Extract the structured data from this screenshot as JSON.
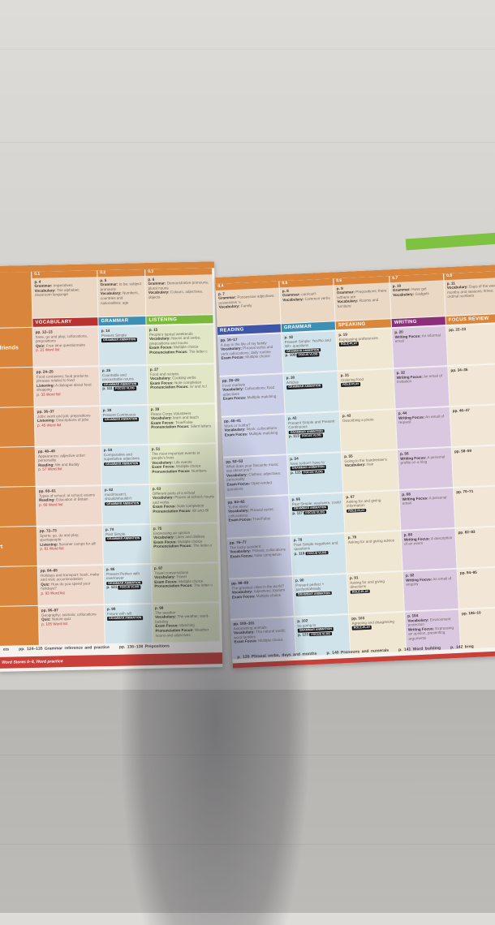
{
  "colors": {
    "orange": "#d9853b",
    "vocabulary": "#b8322f",
    "grammar": "#3d8fb5",
    "listening": "#79b83a",
    "reading": "#3f56a8",
    "speaking": "#d9883b",
    "writing": "#8c2f7a",
    "focus_review": "#d9853b"
  },
  "left_page": {
    "side_labels": [
      "d friends",
      "",
      "",
      "",
      "",
      "rt",
      "",
      ""
    ],
    "intro": [
      {
        "num": "0.1",
        "page": "p. 4",
        "items": [
          {
            "k": "Grammar:",
            "v": "Imperatives"
          },
          {
            "k": "Vocabulary:",
            "v": "The alphabet; classroom language"
          }
        ]
      },
      {
        "num": "0.2",
        "page": "p. 5",
        "items": [
          {
            "k": "Grammar:",
            "v": "to be; subject pronouns"
          },
          {
            "k": "Vocabulary:",
            "v": "Numbers, countries and nationalities; age"
          }
        ]
      },
      {
        "num": "0.3",
        "page": "p. 6",
        "items": [
          {
            "k": "Grammar:",
            "v": "Demonstrative pronouns, plural nouns"
          },
          {
            "k": "Vocabulary:",
            "v": "Colours, adjectives, objects"
          }
        ]
      }
    ],
    "headers": [
      {
        "label": "VOCABULARY",
        "color": "#b8322f",
        "bg": "#efd9cd"
      },
      {
        "label": "GRAMMAR",
        "color": "#3d8fb5",
        "bg": "#d3e3ea"
      },
      {
        "label": "LISTENING",
        "color": "#79b83a",
        "bg": "#e0e6c6"
      }
    ],
    "rows": [
      [
        {
          "page": "pp. 12–13",
          "text": "have, go and play; collocations, prepositions",
          "items": [
            {
              "k": "Quiz:",
              "v": "Free time questionnaire"
            }
          ],
          "wl": "p. 21 Word list"
        },
        {
          "page": "p. 14",
          "text": "Present Simple",
          "badges": [
            "GRAMMAR ANIMATION"
          ]
        },
        {
          "page": "p. 15",
          "text": "People's typical weekends",
          "items": [
            {
              "k": "Vocabulary:",
              "v": "Nouns and verbs; prepositions and nouns"
            },
            {
              "k": "Exam Focus:",
              "v": "Multiple choice"
            },
            {
              "k": "Pronunciation Focus:",
              "v": "The letter c"
            }
          ]
        }
      ],
      [
        {
          "page": "pp. 24–25",
          "text": "Food containers; food products; phrases related to food",
          "items": [
            {
              "k": "Listening:",
              "v": "A dialogue about food shopping"
            }
          ],
          "wl": "p. 33 Word list"
        },
        {
          "page": "p. 26",
          "text": "Countable and uncountable nouns",
          "badges": [
            "GRAMMAR ANIMATION"
          ],
          "extra": "p. 111",
          "badges2": [
            "FOCUS VLOG"
          ]
        },
        {
          "page": "p. 27",
          "text": "Food and recipes",
          "items": [
            {
              "k": "Vocabulary:",
              "v": "Cooking verbs"
            },
            {
              "k": "Exam Focus:",
              "v": "Note completion"
            },
            {
              "k": "Pronunciation Focus:",
              "v": "/ʌ/ and /u:/"
            }
          ]
        }
      ],
      [
        {
          "page": "pp. 36–37",
          "text": "Jobs; work and job; prepositions",
          "items": [
            {
              "k": "Listening:",
              "v": "Descriptions of jobs"
            }
          ],
          "wl": "p. 45 Word list"
        },
        {
          "page": "p. 38",
          "text": "Present Continuous",
          "badges": [
            "GRAMMAR ANIMATION"
          ]
        },
        {
          "page": "p. 39",
          "text": "Peace Corps Volunteers",
          "items": [
            {
              "k": "Vocabulary:",
              "v": "learn and teach"
            },
            {
              "k": "Exam Focus:",
              "v": "True/False"
            },
            {
              "k": "Pronunciation Focus:",
              "v": "Silent letters"
            }
          ]
        }
      ],
      [
        {
          "page": "pp. 48–49",
          "text": "Appearance; adjective order; personality",
          "items": [
            {
              "k": "Reading:",
              "v": "Me and Buddy"
            }
          ],
          "wl": "p. 57 Word list"
        },
        {
          "page": "p. 50",
          "text": "Comparative and superlative adjectives",
          "badges": [
            "GRAMMAR ANIMATION"
          ]
        },
        {
          "page": "p. 51",
          "text": "The most important events in people's lives",
          "items": [
            {
              "k": "Vocabulary:",
              "v": "Life events"
            },
            {
              "k": "Exam Focus:",
              "v": "Multiple choice"
            },
            {
              "k": "Pronunciation Focus:",
              "v": "Numbers"
            }
          ]
        }
      ],
      [
        {
          "page": "pp. 60–61",
          "text": "Types of school; at school; exams",
          "items": [
            {
              "k": "Reading:",
              "v": "Education in Britain"
            }
          ],
          "wl": "p. 69 Word list"
        },
        {
          "page": "p. 62",
          "text": "must/mustn't, should/shouldn't",
          "badges": [
            "GRAMMAR ANIMATION"
          ]
        },
        {
          "page": "p. 63",
          "text": "Different parts of a school",
          "items": [
            {
              "k": "Vocabulary:",
              "v": "Places at school; nouns and verbs"
            },
            {
              "k": "Exam Focus:",
              "v": "Note completion"
            },
            {
              "k": "Pronunciation Focus:",
              "v": "/θ/ and /ð/"
            }
          ]
        }
      ],
      [
        {
          "page": "pp. 72–73",
          "text": "Sports; go, do and play; sportspeople",
          "items": [
            {
              "k": "Listening:",
              "v": "Summer camps for all!"
            }
          ],
          "wl": "p. 81 Word list"
        },
        {
          "page": "p. 74",
          "text": "Past Simple",
          "badges": [
            "GRAMMAR ANIMATION"
          ]
        },
        {
          "page": "p. 75",
          "text": "Expressing an opinion",
          "items": [
            {
              "k": "Vocabulary:",
              "v": "Likes and dislikes"
            },
            {
              "k": "Exam Focus:",
              "v": "Multiple choice"
            },
            {
              "k": "Pronunciation Focus:",
              "v": "The letter a"
            }
          ]
        }
      ],
      [
        {
          "page": "pp. 84–85",
          "text": "Holidays and transport; book, make and visit; accommodation",
          "items": [
            {
              "k": "Quiz:",
              "v": "How do you spend your holidays?"
            }
          ],
          "wl": "p. 93 Word list"
        },
        {
          "page": "p. 86",
          "text": "Present Perfect with ever/never",
          "badges": [
            "GRAMMAR ANIMATION"
          ],
          "extra": "p. 121",
          "badges2": [
            "FOCUS VLOG"
          ]
        },
        {
          "page": "p. 87",
          "text": "Travel conversations",
          "items": [
            {
              "k": "Vocabulary:",
              "v": "Travel"
            },
            {
              "k": "Exam Focus:",
              "v": "Multiple choice"
            },
            {
              "k": "Pronunciation Focus:",
              "v": "The letter o"
            }
          ]
        }
      ],
      [
        {
          "page": "pp. 96–97",
          "text": "Geography; animals; collocations",
          "items": [
            {
              "k": "Quiz:",
              "v": "Nature quiz"
            }
          ],
          "wl": "p. 105 Word list"
        },
        {
          "page": "p. 98",
          "text": "Future with will",
          "badges": [
            "GRAMMAR ANIMATION"
          ]
        },
        {
          "page": "p. 99",
          "text": "The weather",
          "items": [
            {
              "k": "Vocabulary:",
              "v": "The weather; word-building"
            },
            {
              "k": "Exam Focus:",
              "v": "Matching"
            },
            {
              "k": "Pronunciation Focus:",
              "v": "Weather nouns and adjectives"
            }
          ]
        }
      ]
    ],
    "footer": [
      "ets",
      "pp. 124–135 Grammar reference and practice",
      "pp. 136–138 Prepositions"
    ],
    "red_band": "Word Stores 0–8, Word practice"
  },
  "right_page": {
    "intro": [
      {
        "num": "0.4",
        "page": "p. 7",
        "items": [
          {
            "k": "Grammar:",
            "v": "Possessive adjectives; possessive 's"
          },
          {
            "k": "Vocabulary:",
            "v": "Family"
          }
        ]
      },
      {
        "num": "0.5",
        "page": "p. 8",
        "items": [
          {
            "k": "Grammar:",
            "v": "can/can't"
          },
          {
            "k": "Vocabulary:",
            "v": "Common verbs"
          }
        ]
      },
      {
        "num": "0.6",
        "page": "p. 9",
        "items": [
          {
            "k": "Grammar:",
            "v": "Prepositions; there is/there are"
          },
          {
            "k": "Vocabulary:",
            "v": "Rooms and furniture"
          }
        ]
      },
      {
        "num": "0.7",
        "page": "p. 10",
        "items": [
          {
            "k": "Grammar:",
            "v": "Have got"
          },
          {
            "k": "Vocabulary:",
            "v": "Gadgets"
          }
        ]
      },
      {
        "num": "0.8",
        "page": "p. 11",
        "items": [
          {
            "k": "Vocabulary:",
            "v": "Days of the week, months and seasons; times; ordinal numbers"
          }
        ]
      }
    ],
    "headers": [
      {
        "label": "READING",
        "color": "#3f56a8",
        "bg": "#cbcfe7"
      },
      {
        "label": "GRAMMAR",
        "color": "#3d8fb5",
        "bg": "#d0e3ea"
      },
      {
        "label": "SPEAKING",
        "color": "#d9883b",
        "bg": "#f0e7d2"
      },
      {
        "label": "WRITING",
        "color": "#8c2f7a",
        "bg": "#dac8e1"
      },
      {
        "label": "FOCUS REVIEW",
        "color": "#d9853b",
        "bg": "#f2e6d6"
      }
    ],
    "rows": [
      [
        {
          "page": "pp. 16–17",
          "text": "A day in the life of my family",
          "items": [
            {
              "k": "Vocabulary:",
              "v": "Phrasal verbs and verb collocations; daily routine"
            },
            {
              "k": "Exam Focus:",
              "v": "Multiple choice"
            }
          ]
        },
        {
          "page": "p. 18",
          "text": "Present Simple: Yes/No and Wh- questions",
          "badges": [
            "GRAMMAR ANIMATION"
          ],
          "extra": "p. 109",
          "badges2": [
            "FOCUS VLOG"
          ]
        },
        {
          "page": "p. 19",
          "text": "Expressing preferences",
          "badges": [
            "ROLE-PLAY"
          ]
        },
        {
          "page": "p. 20",
          "items": [
            {
              "k": "Writing Focus:",
              "v": "An informal email"
            }
          ]
        },
        {
          "page": "pp. 22–23"
        }
      ],
      [
        {
          "page": "pp. 28–29",
          "text": "Food markets",
          "items": [
            {
              "k": "Vocabulary:",
              "v": "Collocations; food adjectives"
            },
            {
              "k": "Exam Focus:",
              "v": "Multiple matching"
            }
          ]
        },
        {
          "page": "p. 30",
          "text": "Articles",
          "badges": [
            "GRAMMAR ANIMATION"
          ]
        },
        {
          "page": "p. 31",
          "text": "Ordering food",
          "badges": [
            "ROLE-PLAY"
          ]
        },
        {
          "page": "p. 32",
          "items": [
            {
              "k": "Writing Focus:",
              "v": "An email of invitation"
            }
          ]
        },
        {
          "page": "pp. 34–35"
        }
      ],
      [
        {
          "page": "pp. 40–41",
          "text": "Work or hobby?",
          "items": [
            {
              "k": "Vocabulary:",
              "v": "Work; collocations"
            },
            {
              "k": "Exam Focus:",
              "v": "Multiple matching"
            }
          ]
        },
        {
          "page": "p. 42",
          "text": "Present Simple and Present Continuous",
          "badges": [
            "GRAMMAR ANIMATION"
          ],
          "extra": "p. 113",
          "badges2": [
            "FOCUS VLOG"
          ]
        },
        {
          "page": "p. 43",
          "text": "Describing a photo"
        },
        {
          "page": "p. 44",
          "items": [
            {
              "k": "Writing Focus:",
              "v": "An email of request"
            }
          ]
        },
        {
          "page": "pp. 46–47"
        }
      ],
      [
        {
          "page": "pp. 52–53",
          "text": "What does your favourite music say about you?",
          "items": [
            {
              "k": "Vocabulary:",
              "v": "Clothes; adjectives; personality"
            },
            {
              "k": "Exam Focus:",
              "v": "Open-ended questions"
            }
          ]
        },
        {
          "page": "p. 54",
          "text": "have to/don't have to",
          "badges": [
            "GRAMMAR ANIMATION"
          ],
          "extra": "p. 115",
          "badges2": [
            "FOCUS VLOG"
          ]
        },
        {
          "page": "p. 55",
          "text": "Going to the hairdresser's",
          "items": [
            {
              "k": "Vocabulary:",
              "v": "Hair"
            }
          ]
        },
        {
          "page": "p. 56",
          "items": [
            {
              "k": "Writing Focus:",
              "v": "A personal profile on a blog"
            }
          ]
        },
        {
          "page": "pp. 58–59"
        }
      ],
      [
        {
          "page": "pp. 64–65",
          "text": "To the stars!",
          "items": [
            {
              "k": "Vocabulary:",
              "v": "Phrasal verbs; collocations"
            },
            {
              "k": "Exam Focus:",
              "v": "True/False"
            }
          ]
        },
        {
          "page": "p. 66",
          "text": "Past Simple: was/were, could",
          "badges": [
            "GRAMMAR ANIMATION"
          ],
          "extra": "p. 117",
          "badges2": [
            "FOCUS VLOG"
          ]
        },
        {
          "page": "p. 67",
          "text": "Asking for and giving information",
          "badges": [
            "ROLE-PLAY"
          ]
        },
        {
          "page": "p. 68",
          "items": [
            {
              "k": "Writing Focus:",
              "v": "A personal email"
            }
          ]
        },
        {
          "page": "pp. 70–71"
        }
      ],
      [
        {
          "page": "pp. 76–77",
          "text": "The lucky accident",
          "items": [
            {
              "k": "Vocabulary:",
              "v": "Fitness; collocations"
            },
            {
              "k": "Exam Focus:",
              "v": "Note completion"
            }
          ]
        },
        {
          "page": "p. 78",
          "text": "Past Simple negatives and questions",
          "extra": "p. 119",
          "badges2": [
            "FOCUS VLOG"
          ]
        },
        {
          "page": "p. 79",
          "text": "Asking for and giving advice"
        },
        {
          "page": "p. 80",
          "items": [
            {
              "k": "Writing Focus:",
              "v": "A description of an event"
            }
          ]
        },
        {
          "page": "pp. 82–83"
        }
      ],
      [
        {
          "page": "pp. 88–89",
          "text": "The greatest cities in the world?",
          "items": [
            {
              "k": "Vocabulary:",
              "v": "Adjectives; tourism"
            },
            {
              "k": "Exam Focus:",
              "v": "Multiple choice"
            }
          ]
        },
        {
          "page": "p. 90",
          "text": "Present perfect + just/yet/already",
          "badges": [
            "GRAMMAR ANIMATION"
          ]
        },
        {
          "page": "p. 91",
          "text": "Asking for and giving directions",
          "badges": [
            "ROLE-PLAY"
          ]
        },
        {
          "page": "p. 92",
          "items": [
            {
              "k": "Writing Focus:",
              "v": "An email of enquiry"
            }
          ]
        },
        {
          "page": "pp. 94–95"
        }
      ],
      [
        {
          "page": "pp. 100–101",
          "text": "Astonishing animals",
          "items": [
            {
              "k": "Vocabulary:",
              "v": "The natural world; word families"
            },
            {
              "k": "Exam Focus:",
              "v": "Multiple choice"
            }
          ]
        },
        {
          "page": "p. 102",
          "text": "be going to",
          "badges": [
            "GRAMMAR ANIMATION"
          ],
          "extra": "p. 123",
          "badges2": [
            "FOCUS VLOG"
          ]
        },
        {
          "page": "pp. 103",
          "text": "Agreeing and disagreeing",
          "badges": [
            "ROLE-PLAY"
          ]
        },
        {
          "page": "p. 104",
          "items": [
            {
              "k": "Vocabulary:",
              "v": "Environment protection"
            },
            {
              "k": "Writing Focus:",
              "v": "Expressing an opinion, presenting arguments"
            }
          ]
        },
        {
          "page": "pp. 106–10"
        }
      ]
    ],
    "footer": [
      "p. 139 Phrasal verbs, days and months",
      "p. 140 Pronouns and numerals",
      "p. 141 Word building",
      "p. 142 Irreg"
    ]
  }
}
